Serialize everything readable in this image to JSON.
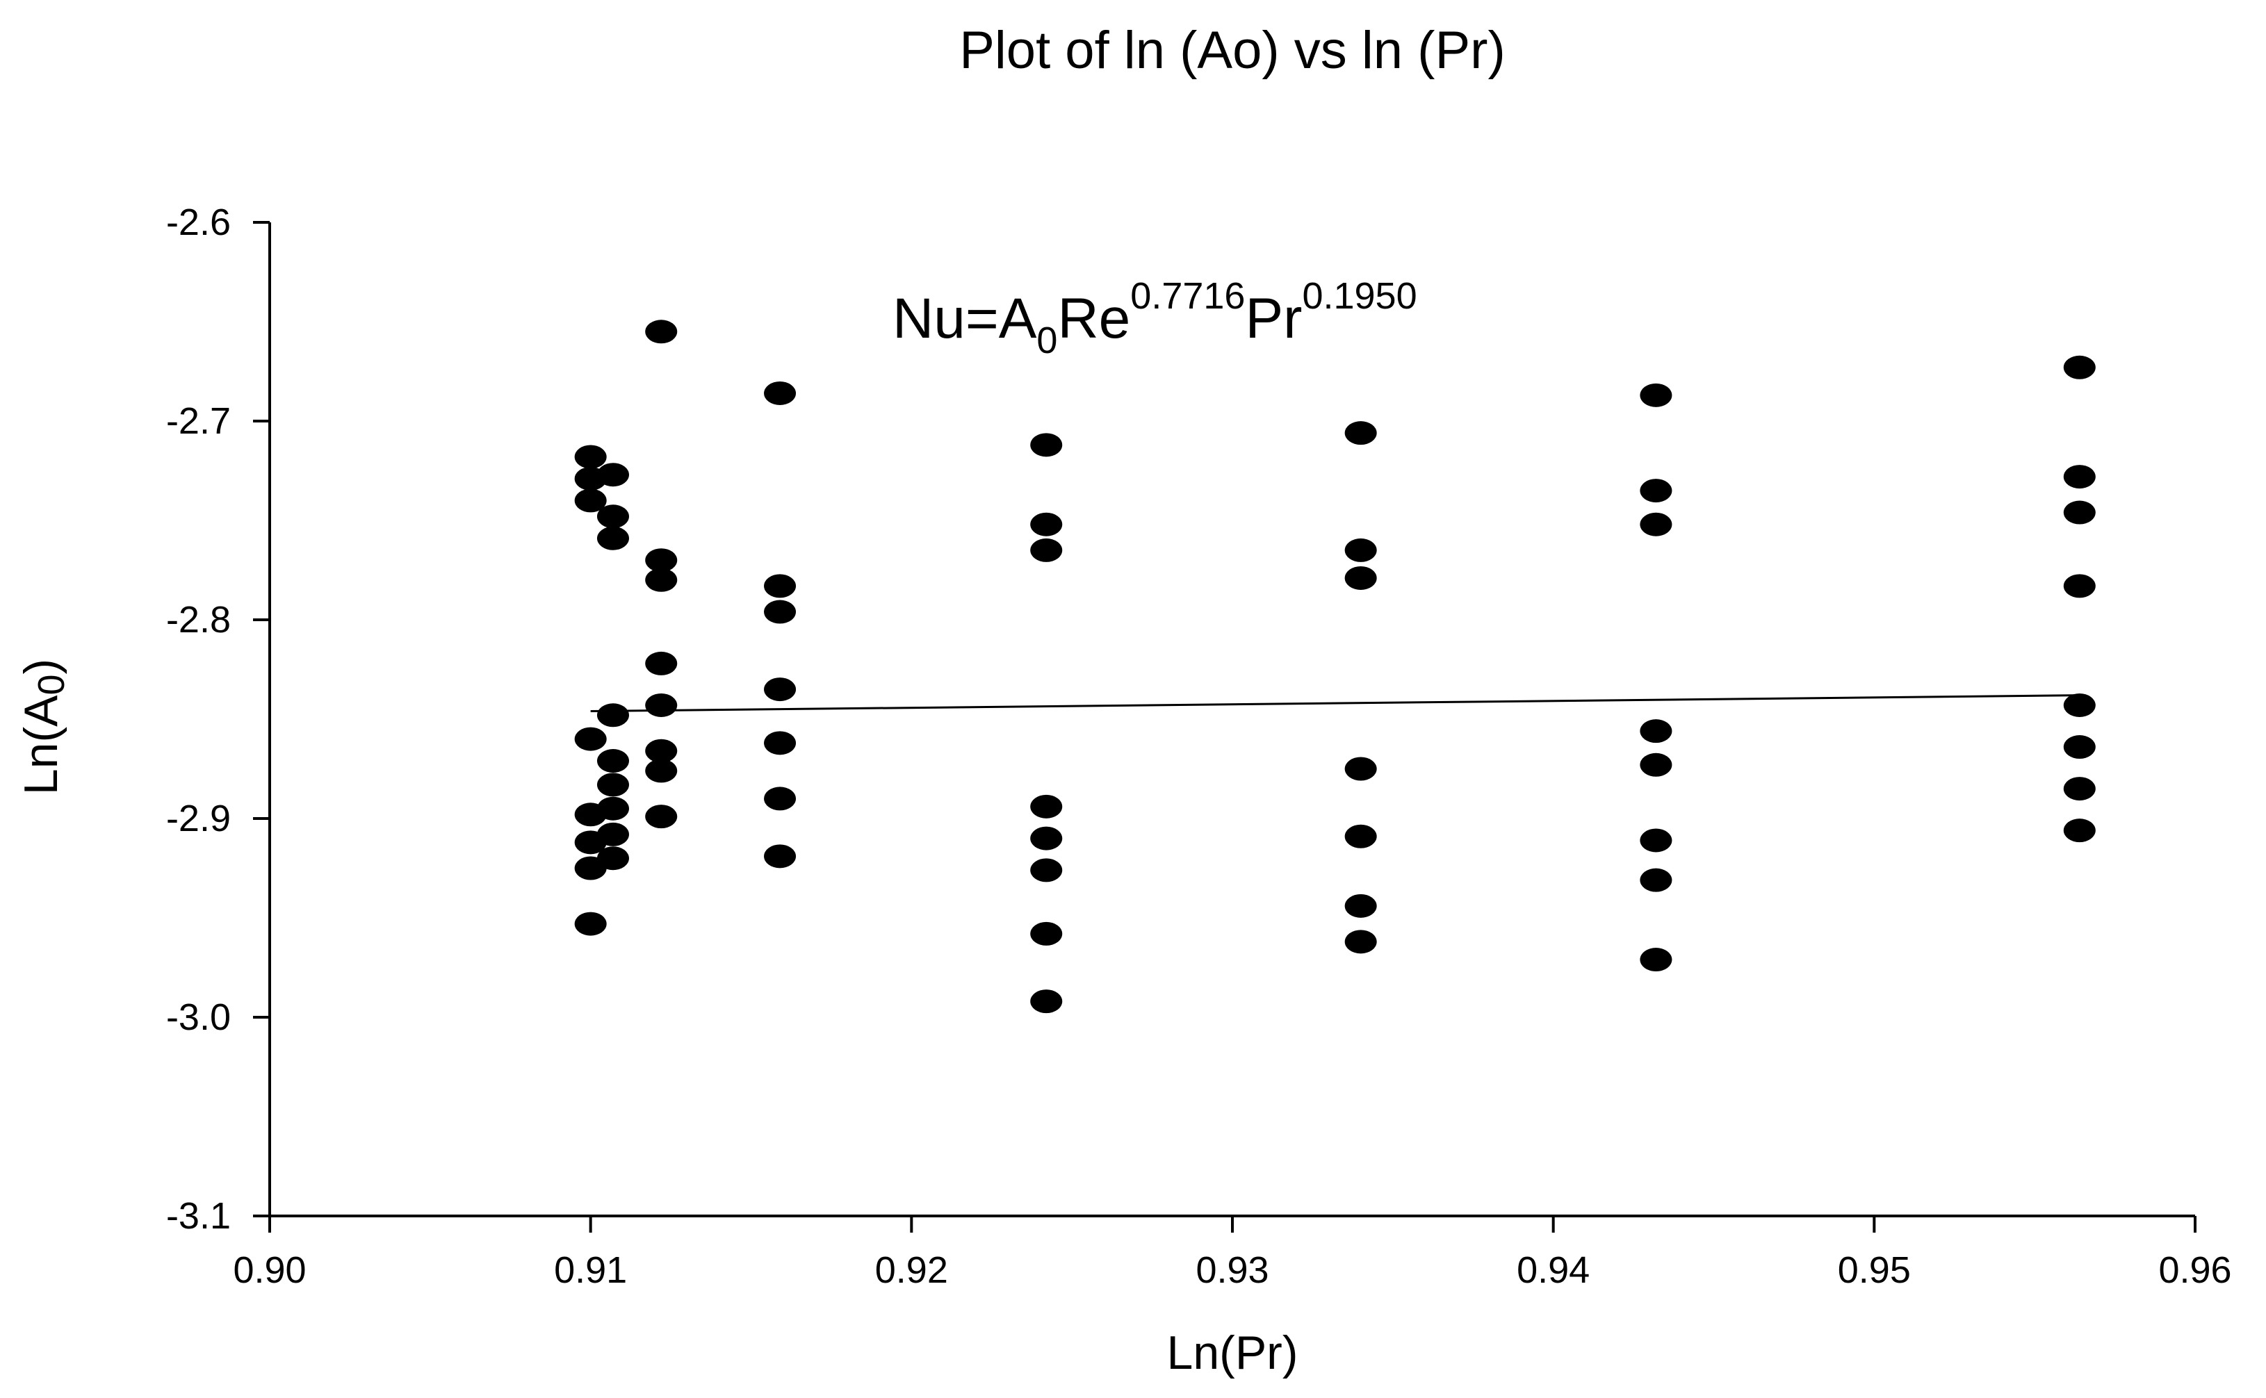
{
  "chart_data": {
    "type": "scatter",
    "title": "Plot of ln (Ao) vs ln (Pr)",
    "xlabel": "Ln(Pr)",
    "ylabel": "Ln(A",
    "ylabel_sub": "0",
    "ylabel_close": ")",
    "xlim": [
      0.9,
      0.96
    ],
    "ylim": [
      -3.1,
      -2.6
    ],
    "x_ticks": [
      0.9,
      0.91,
      0.92,
      0.93,
      0.94,
      0.95,
      0.96
    ],
    "x_tick_labels": [
      "0.90",
      "0.91",
      "0.92",
      "0.93",
      "0.94",
      "0.95",
      "0.96"
    ],
    "y_ticks": [
      -2.6,
      -2.7,
      -2.8,
      -2.9,
      -3.0,
      -3.1
    ],
    "y_tick_labels": [
      "-2.6",
      "-2.7",
      "-2.8",
      "-2.9",
      "-3.0",
      "-3.1"
    ],
    "annotation": {
      "nu": "Nu=A",
      "a_sub": "0",
      "re": "Re",
      "re_exp": "0.7716",
      "pr": "Pr",
      "pr_exp": "0.1950"
    },
    "points": [
      {
        "x": 0.91,
        "y": -2.718
      },
      {
        "x": 0.91,
        "y": -2.729
      },
      {
        "x": 0.91,
        "y": -2.74
      },
      {
        "x": 0.91,
        "y": -2.86
      },
      {
        "x": 0.91,
        "y": -2.898
      },
      {
        "x": 0.91,
        "y": -2.912
      },
      {
        "x": 0.91,
        "y": -2.925
      },
      {
        "x": 0.91,
        "y": -2.953
      },
      {
        "x": 0.9107,
        "y": -2.727
      },
      {
        "x": 0.9107,
        "y": -2.748
      },
      {
        "x": 0.9107,
        "y": -2.759
      },
      {
        "x": 0.9107,
        "y": -2.848
      },
      {
        "x": 0.9107,
        "y": -2.871
      },
      {
        "x": 0.9107,
        "y": -2.883
      },
      {
        "x": 0.9107,
        "y": -2.895
      },
      {
        "x": 0.9107,
        "y": -2.908
      },
      {
        "x": 0.9107,
        "y": -2.92
      },
      {
        "x": 0.9122,
        "y": -2.655
      },
      {
        "x": 0.9122,
        "y": -2.77
      },
      {
        "x": 0.9122,
        "y": -2.78
      },
      {
        "x": 0.9122,
        "y": -2.822
      },
      {
        "x": 0.9122,
        "y": -2.843
      },
      {
        "x": 0.9122,
        "y": -2.866
      },
      {
        "x": 0.9122,
        "y": -2.876
      },
      {
        "x": 0.9122,
        "y": -2.899
      },
      {
        "x": 0.9159,
        "y": -2.686
      },
      {
        "x": 0.9159,
        "y": -2.783
      },
      {
        "x": 0.9159,
        "y": -2.796
      },
      {
        "x": 0.9159,
        "y": -2.835
      },
      {
        "x": 0.9159,
        "y": -2.862
      },
      {
        "x": 0.9159,
        "y": -2.89
      },
      {
        "x": 0.9159,
        "y": -2.919
      },
      {
        "x": 0.9242,
        "y": -2.712
      },
      {
        "x": 0.9242,
        "y": -2.752
      },
      {
        "x": 0.9242,
        "y": -2.765
      },
      {
        "x": 0.9242,
        "y": -2.894
      },
      {
        "x": 0.9242,
        "y": -2.91
      },
      {
        "x": 0.9242,
        "y": -2.926
      },
      {
        "x": 0.9242,
        "y": -2.958
      },
      {
        "x": 0.9242,
        "y": -2.992
      },
      {
        "x": 0.934,
        "y": -2.706
      },
      {
        "x": 0.934,
        "y": -2.765
      },
      {
        "x": 0.934,
        "y": -2.779
      },
      {
        "x": 0.934,
        "y": -2.875
      },
      {
        "x": 0.934,
        "y": -2.909
      },
      {
        "x": 0.934,
        "y": -2.944
      },
      {
        "x": 0.934,
        "y": -2.962
      },
      {
        "x": 0.9432,
        "y": -2.687
      },
      {
        "x": 0.9432,
        "y": -2.735
      },
      {
        "x": 0.9432,
        "y": -2.752
      },
      {
        "x": 0.9432,
        "y": -2.856
      },
      {
        "x": 0.9432,
        "y": -2.873
      },
      {
        "x": 0.9432,
        "y": -2.911
      },
      {
        "x": 0.9432,
        "y": -2.931
      },
      {
        "x": 0.9432,
        "y": -2.971
      },
      {
        "x": 0.9564,
        "y": -2.673
      },
      {
        "x": 0.9564,
        "y": -2.728
      },
      {
        "x": 0.9564,
        "y": -2.746
      },
      {
        "x": 0.9564,
        "y": -2.783
      },
      {
        "x": 0.9564,
        "y": -2.843
      },
      {
        "x": 0.9564,
        "y": -2.864
      },
      {
        "x": 0.9564,
        "y": -2.885
      },
      {
        "x": 0.9564,
        "y": -2.906
      }
    ],
    "fit_line": {
      "x": [
        0.91,
        0.9564
      ],
      "y": [
        -2.846,
        -2.838
      ]
    },
    "grid": false,
    "legend": "none",
    "marker_color": "#000000"
  }
}
